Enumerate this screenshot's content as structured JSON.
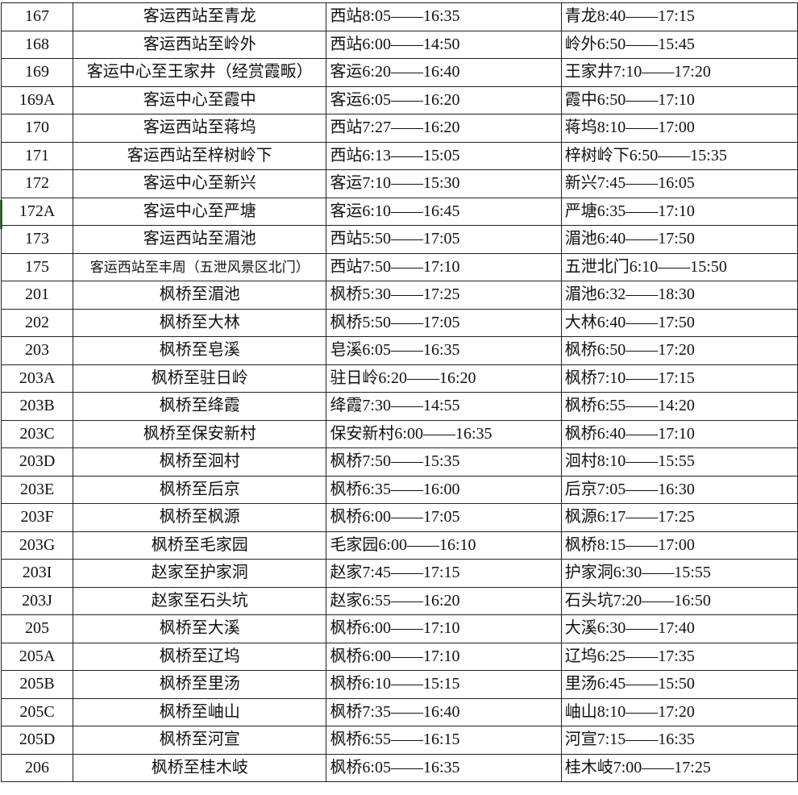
{
  "rows": [
    {
      "no": "167",
      "route": "客运西站至青龙",
      "first": "西站8:05——16:35",
      "second": "青龙8:40——17:15"
    },
    {
      "no": "168",
      "route": "客运西站至岭外",
      "first": "西站6:00——14:50",
      "second": "岭外6:50——15:45"
    },
    {
      "no": "169",
      "route": "客运中心至王家井（经赏霞畈）",
      "first": "客运6:20——16:40",
      "second": "王家井7:10——17:20"
    },
    {
      "no": "169A",
      "route": "客运中心至霞中",
      "first": "客运6:05——16:20",
      "second": "霞中6:50——17:10"
    },
    {
      "no": "170",
      "route": "客运西站至蒋坞",
      "first": "西站7:27——16:20",
      "second": "蒋坞8:10——17:00"
    },
    {
      "no": "171",
      "route": "客运西站至梓树岭下",
      "first": "西站6:13——15:05",
      "second": "梓树岭下6:50——15:35"
    },
    {
      "no": "172",
      "route": "客运中心至新兴",
      "first": "客运7:10——15:30",
      "second": "新兴7:45——16:05"
    },
    {
      "no": "172A",
      "route": "客运中心至严塘",
      "first": "客运6:10——16:45",
      "second": "严塘6:35——17:10"
    },
    {
      "no": "173",
      "route": "客运西站至湄池",
      "first": "西站5:50——17:05",
      "second": "湄池6:40——17:50"
    },
    {
      "no": "175",
      "route": "客运西站至丰周（五泄风景区北门）",
      "first": "西站7:50——17:10",
      "second": "五泄北门6:10——15:50"
    },
    {
      "no": "201",
      "route": "枫桥至湄池",
      "first": "枫桥5:30——17:25",
      "second": "湄池6:32——18:30"
    },
    {
      "no": "202",
      "route": "枫桥至大林",
      "first": "枫桥5:50——17:05",
      "second": "大林6:40——17:50"
    },
    {
      "no": "203",
      "route": "枫桥至皂溪",
      "first": "皂溪6:05——16:35",
      "second": "枫桥6:50——17:20"
    },
    {
      "no": "203A",
      "route": "枫桥至驻日岭",
      "first": "驻日岭6:20——16:20",
      "second": "枫桥7:10——17:15"
    },
    {
      "no": "203B",
      "route": "枫桥至绛霞",
      "first": "绛霞7:30——14:55",
      "second": "枫桥6:55——14:20"
    },
    {
      "no": "203C",
      "route": "枫桥至保安新村",
      "first": "保安新村6:00——16:35",
      "second": "枫桥6:40——17:10"
    },
    {
      "no": "203D",
      "route": "枫桥至洄村",
      "first": "枫桥7:50——15:35",
      "second": "洄村8:10——15:55"
    },
    {
      "no": "203E",
      "route": "枫桥至后京",
      "first": "枫桥6:35——16:00",
      "second": "后京7:05——16:30"
    },
    {
      "no": "203F",
      "route": "枫桥至枫源",
      "first": "枫桥6:00——17:05",
      "second": "枫源6:17——17:25"
    },
    {
      "no": "203G",
      "route": "枫桥至毛家园",
      "first": "毛家园6:00——16:10",
      "second": "枫桥8:15——17:00"
    },
    {
      "no": "203I",
      "route": "赵家至护家洞",
      "first": "赵家7:45——17:15",
      "second": "护家洞6:30——15:55"
    },
    {
      "no": "203J",
      "route": "赵家至石头坑",
      "first": "赵家6:55——16:20",
      "second": "石头坑7:20——16:50"
    },
    {
      "no": "205",
      "route": "枫桥至大溪",
      "first": "枫桥6:00——17:10",
      "second": "大溪6:30——17:40"
    },
    {
      "no": "205A",
      "route": "枫桥至辽坞",
      "first": "枫桥6:00——17:10",
      "second": "辽坞6:25——17:35"
    },
    {
      "no": "205B",
      "route": "枫桥至里汤",
      "first": "枫桥6:10——15:15",
      "second": "里汤6:45——15:50"
    },
    {
      "no": "205C",
      "route": "枫桥至岫山",
      "first": "枫桥7:35——16:40",
      "second": "岫山8:10——17:20"
    },
    {
      "no": "205D",
      "route": "枫桥至河宣",
      "first": "枫桥6:55——16:15",
      "second": "河宣7:15——16:35"
    },
    {
      "no": "206",
      "route": "枫桥至桂木岐",
      "first": "枫桥6:05——16:35",
      "second": "桂木岐7:00——17:25"
    }
  ]
}
